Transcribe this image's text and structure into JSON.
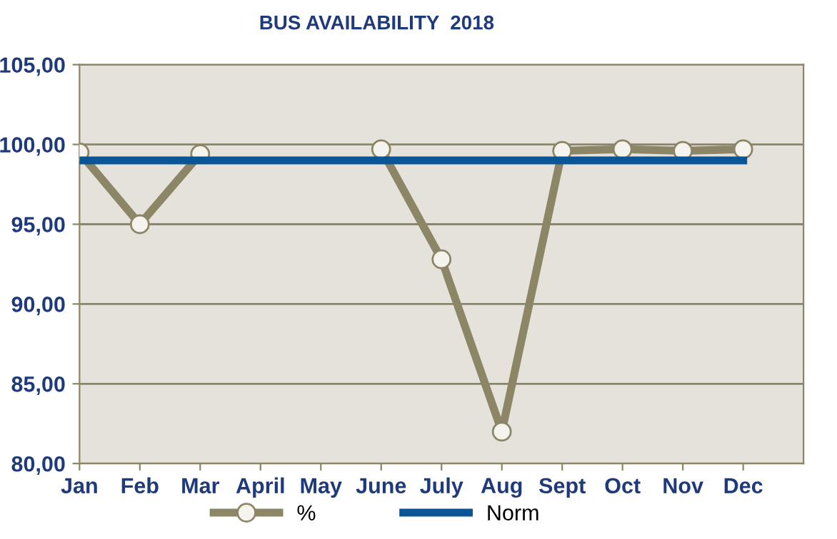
{
  "chart_data": {
    "type": "line",
    "title": "BUS AVAILABILITY  2018",
    "categories": [
      "Jan",
      "Feb",
      "Mar",
      "April",
      "May",
      "June",
      "July",
      "Aug",
      "Sept",
      "Oct",
      "Nov",
      "Dec"
    ],
    "series": [
      {
        "name": "%",
        "color": "#8c8566",
        "marker": "circle",
        "values": [
          99.5,
          95.0,
          99.4,
          null,
          null,
          99.7,
          92.8,
          82.0,
          99.6,
          99.7,
          99.6,
          99.7
        ]
      },
      {
        "name": "Norm",
        "color": "#0a5596",
        "marker": "none",
        "values": [
          99.0,
          99.0,
          99.0,
          99.0,
          99.0,
          99.0,
          99.0,
          99.0,
          99.0,
          99.0,
          99.0,
          99.0
        ]
      }
    ],
    "ylim": [
      80,
      105
    ],
    "yticks": [
      {
        "value": 80,
        "label": "80,00"
      },
      {
        "value": 85,
        "label": "85,00"
      },
      {
        "value": 90,
        "label": "90,00"
      },
      {
        "value": 95,
        "label": "95,00"
      },
      {
        "value": 100,
        "label": "100,00"
      },
      {
        "value": 105,
        "label": "105,00"
      }
    ],
    "grid": "y",
    "legend": "bottom"
  }
}
